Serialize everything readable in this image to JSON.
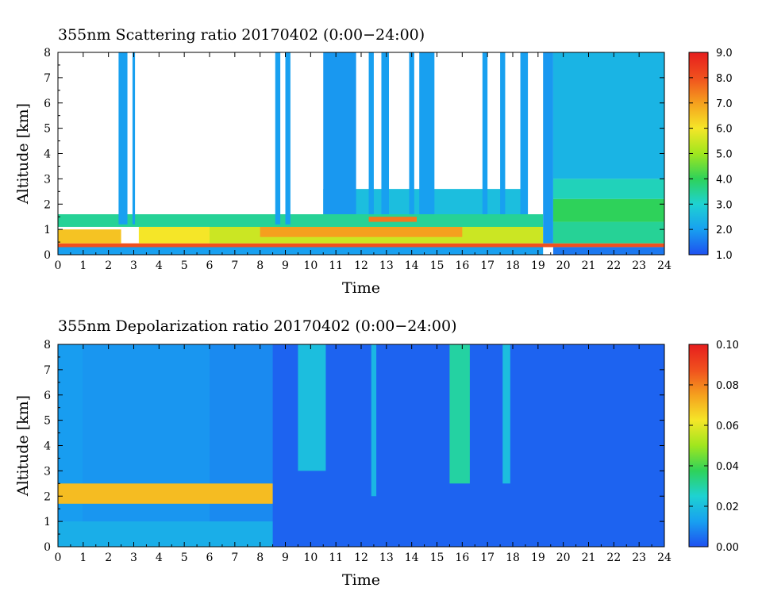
{
  "chart_data": [
    {
      "type": "heatmap",
      "title": "355nm Scattering ratio  20170402 (0:00−24:00)",
      "xlabel": "Time",
      "ylabel": "Altitude [km]",
      "xlim": [
        0,
        24
      ],
      "ylim": [
        0,
        8
      ],
      "x_ticks": [
        "0",
        "1",
        "2",
        "3",
        "4",
        "5",
        "6",
        "7",
        "8",
        "9",
        "10",
        "11",
        "12",
        "13",
        "14",
        "15",
        "16",
        "17",
        "18",
        "19",
        "20",
        "21",
        "22",
        "23",
        "24"
      ],
      "y_ticks": [
        "0",
        "1",
        "2",
        "3",
        "4",
        "5",
        "6",
        "7",
        "8"
      ],
      "colorbar": {
        "min": 1.0,
        "max": 9.0,
        "ticks": [
          "1.0",
          "2.0",
          "3.0",
          "4.0",
          "5.0",
          "6.0",
          "7.0",
          "8.0",
          "9.0"
        ],
        "colors": [
          "#1e50f0",
          "#18a0f0",
          "#1ed2d2",
          "#2ed25a",
          "#a0e61e",
          "#f5e628",
          "#f5a01e",
          "#f0501e",
          "#e61e1e"
        ]
      },
      "regions": [
        {
          "t0": 0,
          "t1": 19.2,
          "z0": 0,
          "z1": 0.35,
          "value": 2.0
        },
        {
          "t0": 0,
          "t1": 24,
          "z0": 0.3,
          "z1": 0.45,
          "value": 8.0
        },
        {
          "t0": 0,
          "t1": 2.5,
          "z0": 0.45,
          "z1": 1.0,
          "value": 6.5
        },
        {
          "t0": 3.2,
          "t1": 6.0,
          "z0": 0.45,
          "z1": 1.1,
          "value": 6.0
        },
        {
          "t0": 6.0,
          "t1": 19.2,
          "z0": 0.45,
          "z1": 1.2,
          "value": 5.5
        },
        {
          "t0": 8,
          "t1": 16,
          "z0": 0.7,
          "z1": 1.1,
          "value": 7.0
        },
        {
          "t0": 0,
          "t1": 19.2,
          "z0": 1.1,
          "z1": 1.6,
          "value": 3.5
        },
        {
          "t0": 12.3,
          "t1": 14.2,
          "z0": 1.3,
          "z1": 1.5,
          "value": 7.5
        },
        {
          "t0": 10.5,
          "t1": 18.5,
          "z0": 1.6,
          "z1": 2.6,
          "value": 2.6
        },
        {
          "t0": 2.4,
          "t1": 2.75,
          "z0": 1.2,
          "z1": 8,
          "value": 2.0
        },
        {
          "t0": 2.95,
          "t1": 3.05,
          "z0": 1.2,
          "z1": 8,
          "value": 2.0
        },
        {
          "t0": 8.6,
          "t1": 8.8,
          "z0": 1.2,
          "z1": 8,
          "value": 2.0
        },
        {
          "t0": 9.0,
          "t1": 9.2,
          "z0": 1.2,
          "z1": 8,
          "value": 2.0
        },
        {
          "t0": 10.5,
          "t1": 11.8,
          "z0": 1.6,
          "z1": 8,
          "value": 1.9
        },
        {
          "t0": 12.3,
          "t1": 12.5,
          "z0": 1.6,
          "z1": 8,
          "value": 2.0
        },
        {
          "t0": 12.8,
          "t1": 13.1,
          "z0": 1.6,
          "z1": 8,
          "value": 2.0
        },
        {
          "t0": 13.9,
          "t1": 14.1,
          "z0": 1.6,
          "z1": 8,
          "value": 2.0
        },
        {
          "t0": 14.3,
          "t1": 14.9,
          "z0": 1.6,
          "z1": 8,
          "value": 2.0
        },
        {
          "t0": 16.8,
          "t1": 17.0,
          "z0": 1.6,
          "z1": 8,
          "value": 2.0
        },
        {
          "t0": 17.5,
          "t1": 17.7,
          "z0": 1.6,
          "z1": 8,
          "value": 2.0
        },
        {
          "t0": 18.3,
          "t1": 18.6,
          "z0": 1.6,
          "z1": 8,
          "value": 2.0
        },
        {
          "t0": 19.2,
          "t1": 19.6,
          "z0": 0.45,
          "z1": 8,
          "value": 1.9
        },
        {
          "t0": 19.6,
          "t1": 24,
          "z0": 3.0,
          "z1": 8,
          "value": 2.4
        },
        {
          "t0": 19.6,
          "t1": 24,
          "z0": 2.2,
          "z1": 3.0,
          "value": 3.2
        },
        {
          "t0": 19.6,
          "t1": 24,
          "z0": 1.3,
          "z1": 2.2,
          "value": 4.0
        },
        {
          "t0": 19.6,
          "t1": 24,
          "z0": 0.45,
          "z1": 1.3,
          "value": 3.5
        },
        {
          "t0": 19.6,
          "t1": 24,
          "z0": 0,
          "z1": 0.3,
          "value": 1.5
        }
      ]
    },
    {
      "type": "heatmap",
      "title": "355nm Depolarization ratio  20170402 (0:00−24:00)",
      "xlabel": "Time",
      "ylabel": "Altitude [km]",
      "xlim": [
        0,
        24
      ],
      "ylim": [
        0,
        8
      ],
      "x_ticks": [
        "0",
        "1",
        "2",
        "3",
        "4",
        "5",
        "6",
        "7",
        "8",
        "9",
        "10",
        "11",
        "12",
        "13",
        "14",
        "15",
        "16",
        "17",
        "18",
        "19",
        "20",
        "21",
        "22",
        "23",
        "24"
      ],
      "y_ticks": [
        "0",
        "1",
        "2",
        "3",
        "4",
        "5",
        "6",
        "7",
        "8"
      ],
      "colorbar": {
        "min": 0.0,
        "max": 0.1,
        "ticks": [
          "0.00",
          "0.02",
          "0.04",
          "0.06",
          "0.08",
          "0.10"
        ],
        "colors": [
          "#1e50f0",
          "#18a0f0",
          "#1ed2d2",
          "#2ed25a",
          "#a0e61e",
          "#f5e628",
          "#f5a01e",
          "#f0501e",
          "#e61e1e"
        ]
      },
      "regions": [
        {
          "t0": 0,
          "t1": 24,
          "z0": 0,
          "z1": 8,
          "value": 0.003
        },
        {
          "t0": 0,
          "t1": 1.0,
          "z0": 0,
          "z1": 8,
          "value": 0.012
        },
        {
          "t0": 1.0,
          "t1": 6.0,
          "z0": 0,
          "z1": 8,
          "value": 0.011
        },
        {
          "t0": 6.0,
          "t1": 8.5,
          "z0": 0,
          "z1": 8,
          "value": 0.009
        },
        {
          "t0": 9.5,
          "t1": 10.6,
          "z0": 3.0,
          "z1": 8,
          "value": 0.02
        },
        {
          "t0": 12.4,
          "t1": 12.6,
          "z0": 2.0,
          "z1": 8,
          "value": 0.018
        },
        {
          "t0": 15.5,
          "t1": 16.3,
          "z0": 2.5,
          "z1": 8,
          "value": 0.03
        },
        {
          "t0": 17.6,
          "t1": 17.9,
          "z0": 2.5,
          "z1": 8,
          "value": 0.02
        },
        {
          "t0": 0,
          "t1": 8.5,
          "z0": 1.7,
          "z1": 2.5,
          "value": 0.07
        },
        {
          "t0": 0,
          "t1": 8.5,
          "z0": 0,
          "z1": 1.0,
          "value": 0.016
        }
      ]
    }
  ]
}
